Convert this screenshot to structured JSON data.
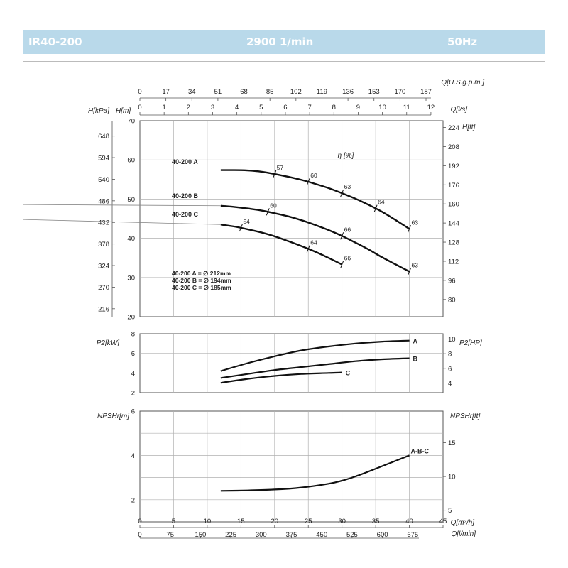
{
  "header": {
    "model": "IR40-200",
    "speed": "2900 1/min",
    "frequency": "50Hz",
    "color": "#b9d9ea"
  },
  "chart_data": [
    {
      "type": "line",
      "panel": "head",
      "xlim": [
        0,
        45
      ],
      "ylim": [
        20,
        70
      ],
      "y_ticks": [
        20,
        30,
        40,
        50,
        60,
        70
      ],
      "ylabel": "H[m]",
      "ylabel_left2": "H[kPa]",
      "y_ticks_kpa": [
        "216",
        "270",
        "324",
        "378",
        "432",
        "486",
        "540",
        "594",
        "648"
      ],
      "ylabel_right": "H[ft]",
      "y_ticks_ft": [
        "80",
        "96",
        "112",
        "128",
        "144",
        "160",
        "176",
        "192",
        "208",
        "224"
      ],
      "top_axis_1": {
        "label": "Q[U.S.g.p.m.]",
        "ticks": [
          "0",
          "17",
          "34",
          "51",
          "68",
          "85",
          "102",
          "119",
          "136",
          "153",
          "170",
          "187"
        ]
      },
      "top_axis_2": {
        "label": "Q[l/s]",
        "ticks": [
          "0",
          "1",
          "2",
          "3",
          "4",
          "5",
          "6",
          "7",
          "8",
          "9",
          "10",
          "11",
          "12"
        ]
      },
      "efficiency_label": "η [%]",
      "series": [
        {
          "name": "40-200 A",
          "x": [
            0,
            12,
            14,
            16,
            18,
            20,
            22,
            24,
            26,
            28,
            30,
            32,
            34,
            36,
            38,
            40
          ],
          "values": [
            57.4,
            57.4,
            57.4,
            57.3,
            57.0,
            56.4,
            55.7,
            54.9,
            53.9,
            52.8,
            51.5,
            50.1,
            48.5,
            46.7,
            44.6,
            42.4
          ]
        },
        {
          "name": "40-200 B",
          "x": [
            0,
            12,
            14,
            16,
            18,
            20,
            22,
            24,
            26,
            28,
            30,
            32,
            34,
            36,
            38,
            40
          ],
          "values": [
            48.6,
            48.3,
            48.0,
            47.6,
            47.1,
            46.4,
            45.6,
            44.6,
            43.4,
            42.1,
            40.6,
            38.9,
            37.1,
            35.1,
            33.3,
            31.5
          ]
        },
        {
          "name": "40-200 C",
          "x": [
            0,
            12,
            14,
            16,
            18,
            20,
            22,
            24,
            26,
            28,
            30
          ],
          "values": [
            44.8,
            43.5,
            43.0,
            42.3,
            41.5,
            40.5,
            39.3,
            38.0,
            36.6,
            35.0,
            33.3
          ]
        }
      ],
      "efficiency_marks": [
        {
          "series": "40-200 A",
          "x": 20,
          "label": "57"
        },
        {
          "series": "40-200 A",
          "x": 25,
          "label": "60"
        },
        {
          "series": "40-200 A",
          "x": 30,
          "label": "63"
        },
        {
          "series": "40-200 A",
          "x": 35,
          "label": "64"
        },
        {
          "series": "40-200 A",
          "x": 40,
          "label": "63"
        },
        {
          "series": "40-200 B",
          "x": 19,
          "label": "60"
        },
        {
          "series": "40-200 B",
          "x": 30,
          "label": "66"
        },
        {
          "series": "40-200 B",
          "x": 40,
          "label": "63"
        },
        {
          "series": "40-200 C",
          "x": 15,
          "label": "54"
        },
        {
          "series": "40-200 C",
          "x": 25,
          "label": "64"
        },
        {
          "series": "40-200 C",
          "x": 30,
          "label": "66"
        }
      ],
      "legend": [
        "40-200 A = ∅ 212mm",
        "40-200 B = ∅ 194mm",
        "40-200 C = ∅ 185mm"
      ]
    },
    {
      "type": "line",
      "panel": "power",
      "xlim": [
        0,
        45
      ],
      "ylim": [
        2,
        8
      ],
      "y_ticks": [
        2,
        4,
        6,
        8
      ],
      "ylabel": "P2[kW]",
      "ylabel_right": "P2[HP]",
      "y_ticks_hp": [
        "4",
        "6",
        "8",
        "10"
      ],
      "series": [
        {
          "name": "A",
          "x": [
            12,
            16,
            20,
            24,
            28,
            32,
            36,
            40
          ],
          "values": [
            4.2,
            5.0,
            5.7,
            6.3,
            6.7,
            7.0,
            7.2,
            7.3
          ]
        },
        {
          "name": "B",
          "x": [
            12,
            16,
            20,
            24,
            28,
            32,
            36,
            40
          ],
          "values": [
            3.5,
            3.9,
            4.3,
            4.6,
            4.9,
            5.2,
            5.4,
            5.5
          ]
        },
        {
          "name": "C",
          "x": [
            12,
            16,
            20,
            24,
            28,
            30
          ],
          "values": [
            3.0,
            3.4,
            3.7,
            3.9,
            4.0,
            4.05
          ]
        }
      ]
    },
    {
      "type": "line",
      "panel": "npsh",
      "xlim": [
        0,
        45
      ],
      "ylim": [
        1,
        6
      ],
      "y_ticks": [
        2,
        4,
        6
      ],
      "ylabel": "NPSHr[m]",
      "ylabel_right": "NPSHr[ft]",
      "y_ticks_ft": [
        "5",
        "10",
        "15"
      ],
      "series": [
        {
          "name": "A-B-C",
          "x": [
            12,
            16,
            20,
            24,
            28,
            30,
            32,
            34,
            36,
            38,
            40
          ],
          "values": [
            2.4,
            2.42,
            2.46,
            2.55,
            2.72,
            2.86,
            3.05,
            3.28,
            3.52,
            3.76,
            4.0
          ]
        }
      ],
      "bottom_axis_1": {
        "label": "Q[m³/h]",
        "ticks": [
          "0",
          "5",
          "10",
          "15",
          "20",
          "25",
          "30",
          "35",
          "40",
          "45"
        ]
      },
      "bottom_axis_2": {
        "label": "Q[l/min]",
        "ticks": [
          "0",
          "75",
          "150",
          "225",
          "300",
          "375",
          "450",
          "525",
          "600",
          "675"
        ]
      }
    }
  ]
}
